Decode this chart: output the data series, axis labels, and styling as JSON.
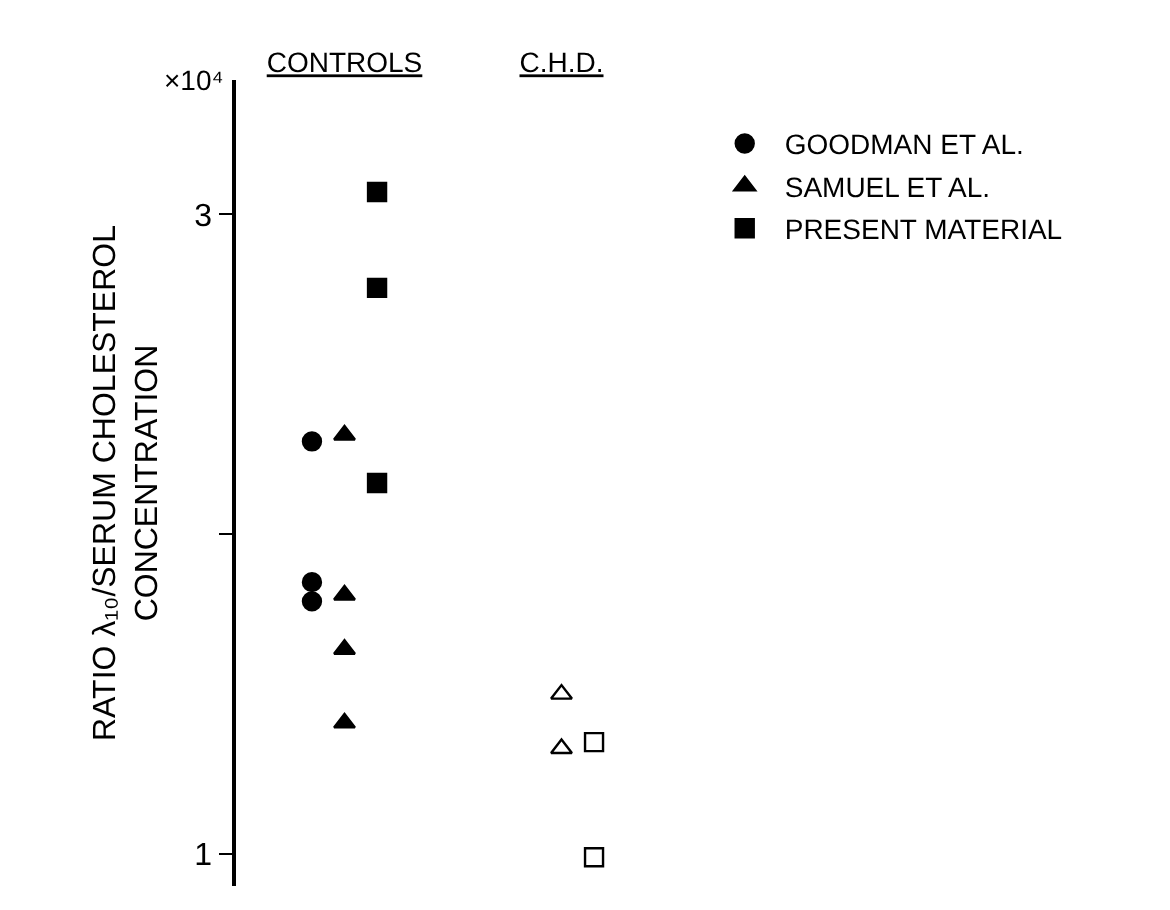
{
  "chart_data": {
    "type": "scatter",
    "ylabel": "RATIO λ₁₀/SERUM CHOLESTEROL\nCONCENTRATION",
    "annotations": [
      "×10⁴"
    ],
    "categories": [
      "CONTROLS",
      "C.H.D."
    ],
    "series": [
      {
        "name": "GOODMAN ET AL.",
        "color": "#000000",
        "marker": "circle",
        "x": [
          "CONTROLS",
          "CONTROLS",
          "CONTROLS"
        ],
        "values": [
          2.29,
          1.85,
          1.79
        ]
      },
      {
        "name": "SAMUEL ET AL.",
        "color": "#000000",
        "marker": "triangle",
        "x": [
          "CONTROLS",
          "CONTROLS",
          "CONTROLS",
          "CONTROLS",
          "C.H.D.",
          "C.H.D."
        ],
        "values": [
          2.31,
          1.81,
          1.64,
          1.41,
          1.5,
          1.33
        ]
      },
      {
        "name": "PRESENT MATERIAL",
        "color": "#000000",
        "marker": "square",
        "x": [
          "CONTROLS",
          "CONTROLS",
          "CONTROLS",
          "C.H.D.",
          "C.H.D."
        ],
        "values": [
          3.07,
          2.77,
          2.16,
          1.35,
          0.99
        ]
      }
    ],
    "ylim": [
      0.9,
      3.42
    ],
    "yticks": [
      1,
      {
        "value": 2,
        "label": null
      },
      3
    ],
    "grid": false,
    "legend": "right"
  }
}
